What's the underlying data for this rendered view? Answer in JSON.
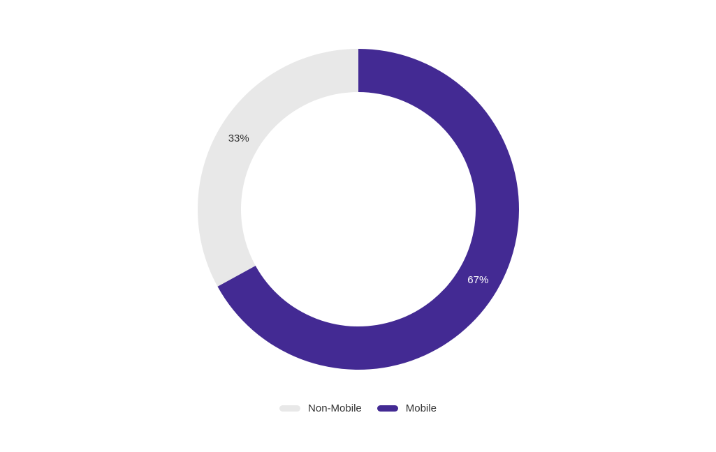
{
  "chart_data": {
    "type": "pie",
    "variant": "donut",
    "title": "",
    "slices": [
      {
        "label": "Mobile",
        "value": 67,
        "display": "67%",
        "color": "#432a93",
        "label_color": "#ffffff"
      },
      {
        "label": "Non-Mobile",
        "value": 33,
        "display": "33%",
        "color": "#e8e8e8",
        "label_color": "#333333"
      }
    ],
    "start_angle_deg": 0,
    "direction": "clockwise",
    "legend": {
      "position": "bottom",
      "items": [
        {
          "label": "Non-Mobile",
          "color": "#e8e8e8"
        },
        {
          "label": "Mobile",
          "color": "#432a93"
        }
      ]
    }
  }
}
